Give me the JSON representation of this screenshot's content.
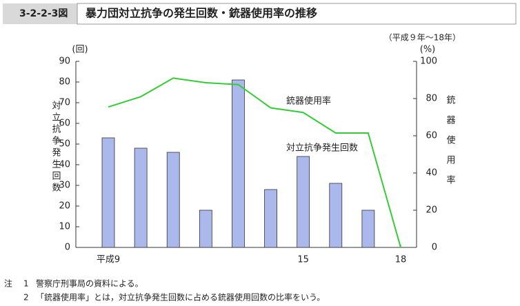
{
  "header": {
    "figure_label": "3-2-2-3図",
    "title": "暴力団対立抗争の発生回数・銃器使用率の推移"
  },
  "chart_data": {
    "type": "bar-line",
    "subtitle": "（平成９年～18年）",
    "ylabel_unit": "(回)",
    "y2label_unit": "(%)",
    "ylabel": "対立抗争発生回数",
    "y2label": "銃器使用率",
    "categories": [
      "平成9",
      null,
      null,
      null,
      null,
      null,
      "15",
      null,
      null,
      "18"
    ],
    "series": [
      {
        "name": "対立抗争発生回数",
        "type": "bar",
        "color": "#aab8ec",
        "values": [
          53,
          48,
          46,
          18,
          81,
          28,
          44,
          31,
          18,
          0
        ]
      },
      {
        "name": "銃器使用率",
        "type": "line",
        "axis": "y2",
        "color": "#33cc33",
        "values": [
          75.5,
          81,
          91,
          88.5,
          87.5,
          75,
          72.5,
          61.5,
          61.5,
          0
        ]
      }
    ],
    "ylim": [
      0,
      90
    ],
    "yticks": [
      0,
      10,
      20,
      30,
      40,
      50,
      60,
      70,
      80,
      90
    ],
    "y2lim": [
      0,
      100
    ],
    "y2ticks": [
      0,
      20,
      40,
      60,
      80,
      100
    ],
    "grid": false
  },
  "notes": {
    "prefix": "注",
    "items": [
      {
        "number": "1",
        "text": "警察庁刑事局の資料による。"
      },
      {
        "number": "2",
        "text": "「銃器使用率」とは，対立抗争発生回数に占める銃器使用回数の比率をいう。"
      }
    ]
  }
}
